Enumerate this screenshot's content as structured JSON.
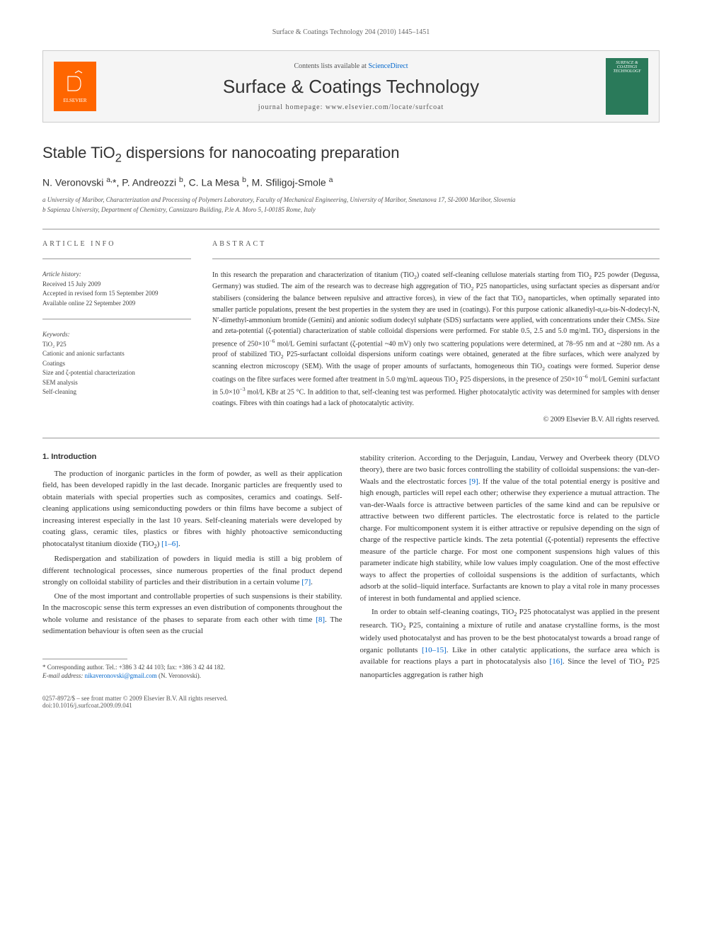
{
  "header": {
    "citation": "Surface & Coatings Technology 204 (2010) 1445–1451"
  },
  "banner": {
    "contents_line_prefix": "Contents lists available at ",
    "contents_line_link": "ScienceDirect",
    "journal_title": "Surface & Coatings Technology",
    "homepage_prefix": "journal homepage: ",
    "homepage_url": "www.elsevier.com/locate/surfcoat",
    "publisher_logo_text": "ELSEVIER",
    "cover_text": "SURFACE & COATINGS TECHNOLOGY"
  },
  "article": {
    "title_html": "Stable TiO<sub>2</sub> dispersions for nanocoating preparation",
    "authors_html": "N. Veronovski <sup>a,</sup>*, P. Andreozzi <sup>b</sup>, C. La Mesa <sup>b</sup>, M. Sfiligoj-Smole <sup>a</sup>",
    "affiliations": [
      "a University of Maribor, Characterization and Processing of Polymers Laboratory, Faculty of Mechanical Engineering, University of Maribor, Smetanova 17, SI-2000 Maribor, Slovenia",
      "b Sapienza University, Department of Chemistry, Cannizzaro Building, P.le A. Moro 5, I-00185 Rome, Italy"
    ]
  },
  "info": {
    "heading": "article info",
    "history_title": "Article history:",
    "history": [
      "Received 15 July 2009",
      "Accepted in revised form 15 September 2009",
      "Available online 22 September 2009"
    ],
    "keywords_title": "Keywords:",
    "keywords": [
      "TiO₂ P25",
      "Cationic and anionic surfactants",
      "Coatings",
      "Size and ζ-potential characterization",
      "SEM analysis",
      "Self-cleaning"
    ]
  },
  "abstract": {
    "heading": "abstract",
    "text_html": "In this research the preparation and characterization of titanium (TiO<sub>2</sub>) coated self-cleaning cellulose materials starting from TiO<sub>2</sub> P25 powder (Degussa, Germany) was studied. The aim of the research was to decrease high aggregation of TiO<sub>2</sub> P25 nanoparticles, using surfactant species as dispersant and/or stabilisers (considering the balance between repulsive and attractive forces), in view of the fact that TiO<sub>2</sub> nanoparticles, when optimally separated into smaller particle populations, present the best properties in the system they are used in (coatings). For this purpose cationic alkanediyl-α,ω-bis-N-dodecyl-N, N′-dimethyl-ammonium bromide (Gemini) and anionic sodium dodecyl sulphate (SDS) surfactants were applied, with concentrations under their CMSs. Size and zeta-potential (ζ-potential) characterization of stable colloidal dispersions were performed. For stable 0.5, 2.5 and 5.0 mg/mL TiO<sub>2</sub> dispersions in the presence of 250×10<sup>−6</sup> mol/L Gemini surfactant (ζ-potential ~40 mV) only two scattering populations were determined, at 78–95 nm and at ~280 nm. As a proof of stabilized TiO<sub>2</sub> P25-surfactant colloidal dispersions uniform coatings were obtained, generated at the fibre surfaces, which were analyzed by scanning electron microscopy (SEM). With the usage of proper amounts of surfactants, homogeneous thin TiO<sub>2</sub> coatings were formed. Superior dense coatings on the fibre surfaces were formed after treatment in 5.0 mg/mL aqueous TiO<sub>2</sub> P25 dispersions, in the presence of 250×10<sup>−6</sup> mol/L Gemini surfactant in 5.0×10<sup>−3</sup> mol/L KBr at 25 °C. In addition to that, self-cleaning test was performed. Higher photocatalytic activity was determined for samples with denser coatings. Fibres with thin coatings had a lack of photocatalytic activity.",
    "copyright": "© 2009 Elsevier B.V. All rights reserved."
  },
  "body": {
    "section_heading": "1. Introduction",
    "left_paragraphs": [
      "The production of inorganic particles in the form of powder, as well as their application field, has been developed rapidly in the last decade. Inorganic particles are frequently used to obtain materials with special properties such as composites, ceramics and coatings. Self-cleaning applications using semiconducting powders or thin films have become a subject of increasing interest especially in the last 10 years. Self-cleaning materials were developed by coating glass, ceramic tiles, plastics or fibres with highly photoactive semiconducting photocatalyst titanium dioxide (TiO<sub>2</sub>) <span class=\"ref-link\">[1–6]</span>.",
      "Redispergation and stabilization of powders in liquid media is still a big problem of different technological processes, since numerous properties of the final product depend strongly on colloidal stability of particles and their distribution in a certain volume <span class=\"ref-link\">[7]</span>.",
      "One of the most important and controllable properties of such suspensions is their stability. In the macroscopic sense this term expresses an even distribution of components throughout the whole volume and resistance of the phases to separate from each other with time <span class=\"ref-link\">[8]</span>. The sedimentation behaviour is often seen as the crucial"
    ],
    "right_paragraphs": [
      "stability criterion. According to the Derjaguin, Landau, Verwey and Overbeek theory (DLVO theory), there are two basic forces controlling the stability of colloidal suspensions: the van-der-Waals and the electrostatic forces <span class=\"ref-link\">[9]</span>. If the value of the total potential energy is positive and high enough, particles will repel each other; otherwise they experience a mutual attraction. The van-der-Waals force is attractive between particles of the same kind and can be repulsive or attractive between two different particles. The electrostatic force is related to the particle charge. For multicomponent system it is either attractive or repulsive depending on the sign of charge of the respective particle kinds. The zeta potential (ζ-potential) represents the effective measure of the particle charge. For most one component suspensions high values of this parameter indicate high stability, while low values imply coagulation. One of the most effective ways to affect the properties of colloidal suspensions is the addition of surfactants, which adsorb at the solid–liquid interface. Surfactants are known to play a vital role in many processes of interest in both fundamental and applied science.",
      "In order to obtain self-cleaning coatings, TiO<sub>2</sub> P25 photocatalyst was applied in the present research. TiO<sub>2</sub> P25, containing a mixture of rutile and anatase crystalline forms, is the most widely used photocatalyst and has proven to be the best photocatalyst towards a broad range of organic pollutants <span class=\"ref-link\">[10–15]</span>. Like in other catalytic applications, the surface area which is available for reactions plays a part in photocatalysis also <span class=\"ref-link\">[16]</span>. Since the level of TiO<sub>2</sub> P25 nanoparticles aggregation is rather high"
    ]
  },
  "footnote": {
    "corresponding": "* Corresponding author. Tel.: +386 3 42 44 103; fax: +386 3 42 44 182.",
    "email_label": "E-mail address:",
    "email": "nikaveronovski@gmail.com",
    "email_name": "(N. Veronovski)."
  },
  "footer": {
    "issn_line": "0257-8972/$ – see front matter © 2009 Elsevier B.V. All rights reserved.",
    "doi_line": "doi:10.1016/j.surfcoat.2009.09.041"
  },
  "colors": {
    "elsevier_orange": "#ff6600",
    "cover_green": "#2a7a5a",
    "link_blue": "#0066cc",
    "text_gray": "#333333",
    "muted_gray": "#666666"
  }
}
